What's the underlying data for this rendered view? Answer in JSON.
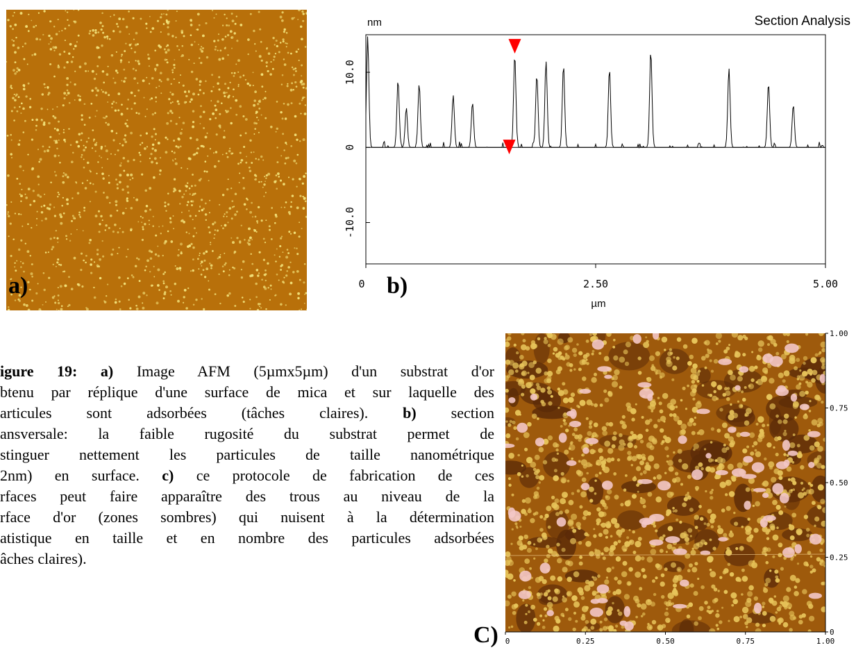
{
  "panels": {
    "a": {
      "label": "a)"
    },
    "b": {
      "label": "b)"
    },
    "c": {
      "label": "C)"
    }
  },
  "colors": {
    "afm_substrate": "#b8700a",
    "afm_particle": "#f2e27a",
    "afm_c_base": "#9e5a0c",
    "afm_c_particle_light": "#e7c45a",
    "afm_c_particle_peak": "#f3c6c6",
    "afm_c_hole": "#5a2a08",
    "cursor_marker": "#ff0000"
  },
  "chart_data": {
    "type": "line",
    "title": "Section Analysis",
    "xlabel": "µm",
    "ylabel": "nm",
    "xlim": [
      0,
      5.0
    ],
    "ylim": [
      -15.5,
      15
    ],
    "x_ticks": [
      0,
      2.5,
      5.0
    ],
    "x_tick_labels": [
      "0",
      "2.50",
      "5.00"
    ],
    "y_ticks": [
      10.0,
      0,
      -10.0
    ],
    "y_tick_labels": [
      "10.0",
      "0",
      "-10.0"
    ],
    "zero_line": true,
    "grid": false,
    "markers": [
      {
        "x": 1.62,
        "y": 12.4,
        "type": "cursor"
      },
      {
        "x": 1.56,
        "y": -1.0,
        "type": "cursor"
      }
    ],
    "peaks": [
      {
        "x": 0.02,
        "y": 14.8
      },
      {
        "x": 0.35,
        "y": 9.0
      },
      {
        "x": 0.44,
        "y": 5.3
      },
      {
        "x": 0.58,
        "y": 8.5
      },
      {
        "x": 0.95,
        "y": 7.0
      },
      {
        "x": 1.16,
        "y": 6.0
      },
      {
        "x": 1.62,
        "y": 12.4
      },
      {
        "x": 1.86,
        "y": 9.7
      },
      {
        "x": 1.96,
        "y": 11.5
      },
      {
        "x": 2.15,
        "y": 11.0
      },
      {
        "x": 2.65,
        "y": 10.5
      },
      {
        "x": 3.1,
        "y": 12.9
      },
      {
        "x": 3.95,
        "y": 10.6
      },
      {
        "x": 4.38,
        "y": 8.6
      },
      {
        "x": 4.65,
        "y": 5.7
      }
    ]
  },
  "image_c_axis": {
    "x_tick_labels": [
      "0",
      "0.25",
      "0.50",
      "0.75",
      "1.00"
    ],
    "y_tick_labels": [
      "1.00",
      "0.75",
      "0.50",
      "0.25",
      "0"
    ]
  },
  "caption": {
    "lines": [
      [
        {
          "b": "igure 19: a)"
        },
        {
          "t": " Image AFM (5µmx5µm) d'un substrat d'or"
        }
      ],
      [
        {
          "t": "btenu par réplique d'une surface de mica et sur laquelle des"
        }
      ],
      [
        {
          "t": "articules sont adsorbées (tâches claires). "
        },
        {
          "b": "b)"
        },
        {
          "t": " section"
        }
      ],
      [
        {
          "t": "ansversale: la faible rugosité du substrat permet de"
        }
      ],
      [
        {
          "t": "stinguer nettement les particules de taille nanométrique"
        }
      ],
      [
        {
          "t": "2nm) en surface. "
        },
        {
          "b": "c)"
        },
        {
          "t": " ce protocole de fabrication de ces"
        }
      ],
      [
        {
          "t": "rfaces peut faire apparaître des trous au niveau de la"
        }
      ],
      [
        {
          "t": "rface d'or (zones sombres) qui nuisent à la détermination"
        }
      ],
      [
        {
          "t": "atistique en taille et en nombre des particules adsorbées"
        }
      ],
      [
        {
          "t": "âches claires)."
        }
      ]
    ]
  }
}
